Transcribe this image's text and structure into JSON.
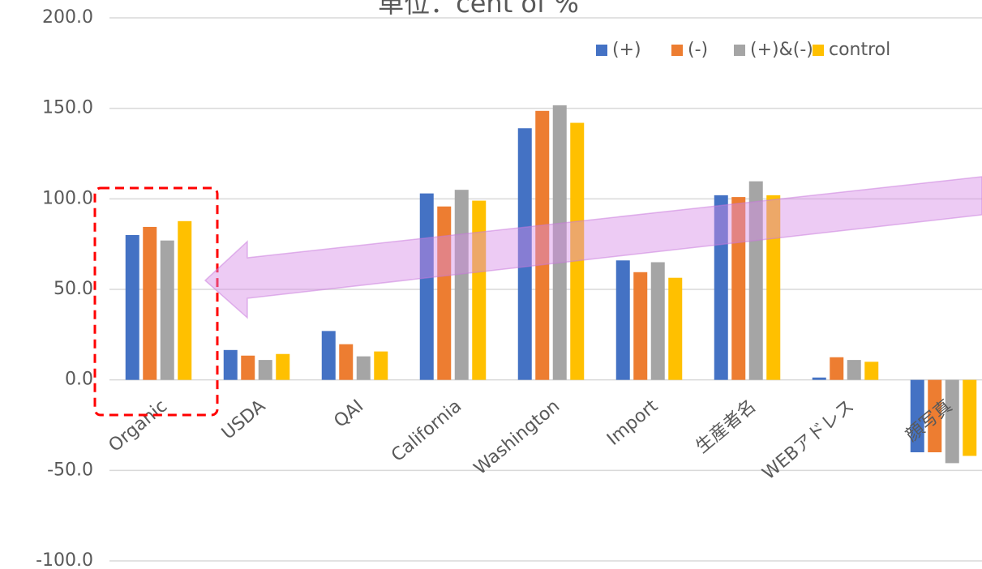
{
  "chart_data": {
    "type": "bar",
    "title": "単位：cent of %",
    "categories": [
      "Organic",
      "USDA",
      "QAI",
      "California",
      "Washington",
      "Import",
      "生産者名",
      "WEBアドレス",
      "顔写真"
    ],
    "series": [
      {
        "name": "(+)",
        "color": "#4472c4",
        "values": [
          80,
          16.5,
          27,
          103,
          139,
          66,
          102,
          1.3,
          -40
        ]
      },
      {
        "name": "(-)",
        "color": "#ed7d31",
        "values": [
          84.5,
          13.4,
          19.7,
          95.8,
          148.6,
          59.5,
          101,
          12.5,
          -40
        ]
      },
      {
        "name": "(+)&(-)",
        "color": "#a5a5a5",
        "values": [
          77,
          11,
          13,
          105,
          151.7,
          65,
          109.7,
          11,
          -46
        ]
      },
      {
        "name": "control",
        "color": "#ffc000",
        "values": [
          87.7,
          14.3,
          15.7,
          99,
          142,
          56.4,
          102,
          10,
          -42
        ]
      }
    ],
    "ylim": [
      -100,
      200
    ],
    "yticks": [
      {
        "value": -100,
        "label": "-100.0"
      },
      {
        "value": -50,
        "label": "-50.0"
      },
      {
        "value": 0,
        "label": "0.0"
      },
      {
        "value": 50,
        "label": "50.0"
      },
      {
        "value": 100,
        "label": "100.0"
      },
      {
        "value": 150,
        "label": "150.0"
      },
      {
        "value": 200,
        "label": "200.0"
      }
    ],
    "grid": true,
    "legend": "top-right"
  }
}
